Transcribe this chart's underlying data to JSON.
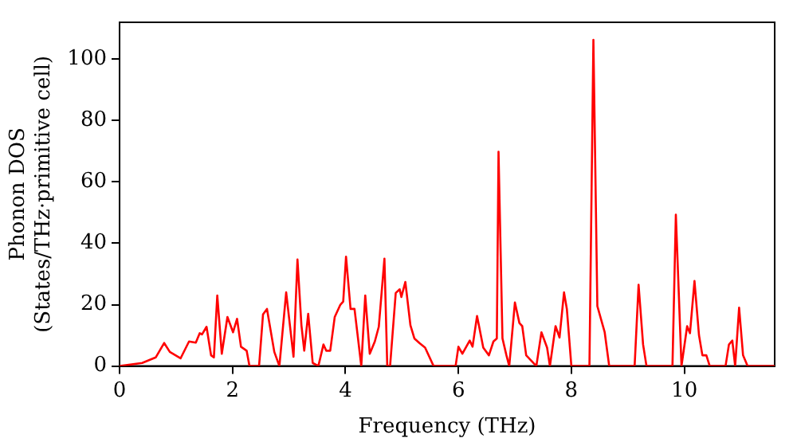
{
  "chart_data": {
    "type": "line",
    "xlabel": "Frequency (THz)",
    "ylabel": "Phonon DOS\n(States/THz·primitive cell)",
    "xlim": [
      0,
      11.6
    ],
    "ylim": [
      0,
      112
    ],
    "xticks": [
      0,
      2,
      4,
      6,
      8,
      10
    ],
    "yticks": [
      0,
      20,
      40,
      60,
      80,
      100
    ],
    "grid": false,
    "legend": false,
    "marker": "none",
    "line_style": "solid",
    "x": [
      0,
      0.4,
      0.64,
      0.79,
      0.89,
      1.08,
      1.23,
      1.35,
      1.42,
      1.46,
      1.54,
      1.62,
      1.67,
      1.73,
      1.81,
      1.91,
      2.01,
      2.08,
      2.15,
      2.25,
      2.3,
      2.47,
      2.54,
      2.61,
      2.74,
      2.83,
      2.95,
      3.08,
      3.15,
      3.22,
      3.27,
      3.34,
      3.42,
      3.52,
      3.61,
      3.66,
      3.73,
      3.81,
      3.91,
      3.96,
      4.01,
      4.09,
      4.16,
      4.28,
      4.35,
      4.43,
      4.52,
      4.59,
      4.69,
      4.74,
      4.79,
      4.89,
      4.96,
      4.99,
      5.06,
      5.15,
      5.22,
      5.31,
      5.41,
      5.56,
      5.95,
      6.0,
      6.07,
      6.2,
      6.25,
      6.33,
      6.44,
      6.54,
      6.62,
      6.68,
      6.71,
      6.78,
      6.85,
      6.9,
      7.0,
      7.08,
      7.13,
      7.2,
      7.38,
      7.47,
      7.57,
      7.62,
      7.72,
      7.79,
      7.87,
      7.92,
      8.0,
      8.32,
      8.39,
      8.46,
      8.59,
      8.67,
      9.12,
      9.19,
      9.27,
      9.33,
      9.79,
      9.85,
      9.95,
      10.05,
      10.1,
      10.18,
      10.26,
      10.32,
      10.39,
      10.45,
      10.73,
      10.79,
      10.85,
      10.9,
      10.97,
      11.04,
      11.12,
      11.6
    ],
    "series": [
      {
        "color": "#ff0000",
        "values": [
          0,
          1,
          2.8,
          7.5,
          4.6,
          2.5,
          8,
          7.6,
          10.7,
          10.3,
          12.8,
          3.5,
          2.8,
          23,
          4,
          16,
          11,
          15.4,
          6.3,
          5,
          0,
          0,
          16.8,
          18.6,
          4.6,
          0,
          24,
          3,
          34.7,
          13.3,
          5,
          17,
          1,
          0,
          7,
          5,
          5,
          16,
          20,
          21,
          35.6,
          18.6,
          18.6,
          0,
          23,
          4,
          8,
          12.8,
          35,
          0,
          0,
          23.8,
          25,
          22.5,
          27.4,
          13.3,
          9,
          7.5,
          6,
          0,
          0,
          6.3,
          4,
          8.3,
          6.3,
          16.3,
          6,
          3.5,
          8,
          9,
          69.8,
          9,
          3.5,
          0,
          20.7,
          14,
          13,
          3.5,
          0,
          11,
          6,
          0,
          13,
          9.3,
          24,
          18.6,
          0,
          0,
          106.3,
          19.5,
          11,
          0,
          0,
          26.5,
          7,
          0,
          0,
          49.3,
          0,
          13,
          10.7,
          27.7,
          10,
          3.5,
          3.5,
          0,
          0,
          7,
          8.3,
          0,
          19,
          3.5,
          0,
          0
        ]
      }
    ]
  }
}
